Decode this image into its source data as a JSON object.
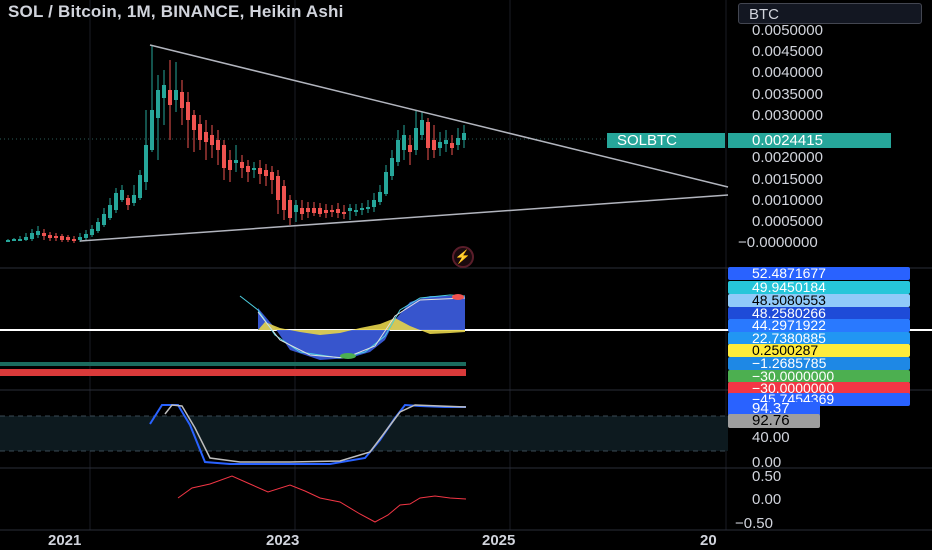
{
  "header": {
    "title": "SOL / Bitcoin, 1M, BINANCE, Heikin Ashi",
    "currency_button": "BTC"
  },
  "price_axis": {
    "ticks": [
      "0.0050000",
      "0.0045000",
      "0.0040000",
      "0.0035000",
      "0.0030000",
      "0.0020000",
      "0.0015000",
      "0.0010000",
      "0.0005000",
      "−0.0000000"
    ]
  },
  "current_price": {
    "symbol": "SOLBTC",
    "value": "0.0024415",
    "color": "#26a69a"
  },
  "indicator_labels": [
    {
      "text": "52.4871677",
      "color": "#2962ff"
    },
    {
      "text": "49.9450184",
      "color": "#26c6da"
    },
    {
      "text": "48.5080553",
      "color": "#90caf9"
    },
    {
      "text": "48.2580266",
      "color": "#1e4bd8"
    },
    {
      "text": "44.2971922",
      "color": "#2979ff"
    },
    {
      "text": "22.7380885",
      "color": "#2196f3"
    },
    {
      "text": "0.2500287",
      "color": "#ffeb3b"
    },
    {
      "text": "−1.2685785",
      "color": "#1e88e5"
    },
    {
      "text": "−30.0000000",
      "color": "#4caf50"
    },
    {
      "text": "−30.0000000",
      "color": "#f23645"
    },
    {
      "text": "−45.7454369",
      "color": "#2962ff"
    }
  ],
  "stoch": {
    "k_value": "94.37",
    "d_value": "92.76",
    "k_color": "#2962ff",
    "d_color": "#9e9e9e",
    "ticks": [
      "40.00",
      "0.00"
    ]
  },
  "oscillator": {
    "ticks": [
      "0.50",
      "0.00",
      "−0.50"
    ],
    "color": "#f23645"
  },
  "time_axis": {
    "labels": [
      "2021",
      "2023",
      "2025",
      "20"
    ]
  },
  "colors": {
    "bull": "#26a69a",
    "bear": "#ef5350",
    "trendline": "#b2b5be"
  }
}
